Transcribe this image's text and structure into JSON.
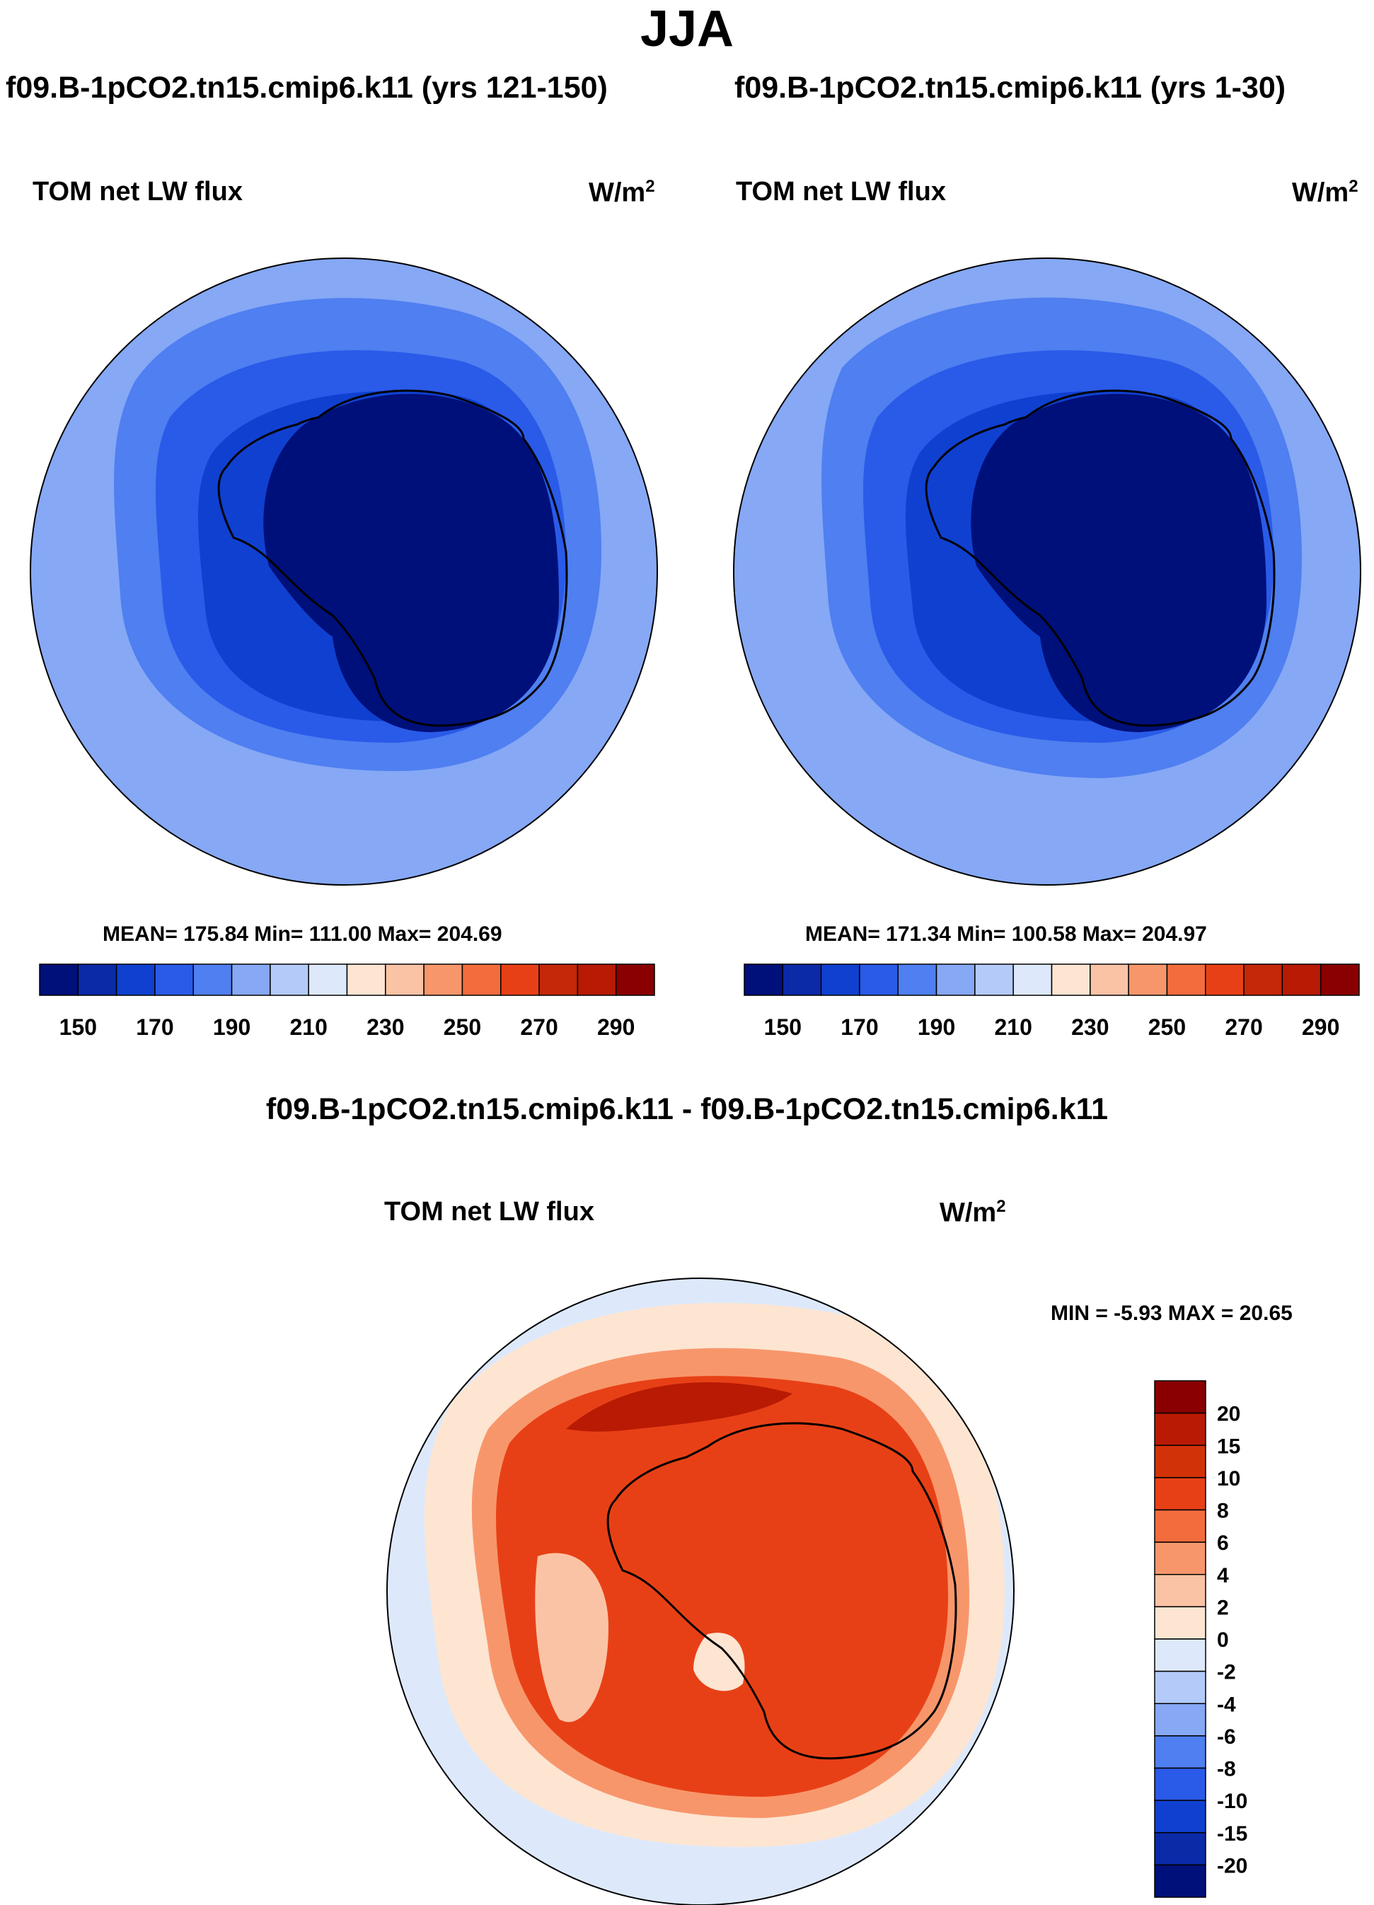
{
  "page": {
    "title": "JJA"
  },
  "panels": [
    {
      "id": "left",
      "case_title": "f09.B-1pCO2.tn15.cmip6.k11 (yrs 121-150)",
      "variable": "TOM net LW flux",
      "units_base": "W/m",
      "units_exp": "2",
      "stats": "MEAN= 175.84  Min= 111.00  Max= 204.69",
      "colorbar_labels": [
        "150",
        "170",
        "190",
        "210",
        "230",
        "250",
        "270",
        "290"
      ]
    },
    {
      "id": "right",
      "case_title": "f09.B-1pCO2.tn15.cmip6.k11 (yrs 1-30)",
      "variable": "TOM net LW flux",
      "units_base": "W/m",
      "units_exp": "2",
      "stats": "MEAN= 171.34  Min= 100.58  Max= 204.97",
      "colorbar_labels": [
        "150",
        "170",
        "190",
        "210",
        "230",
        "250",
        "270",
        "290"
      ]
    }
  ],
  "diff_panel": {
    "case_title": "f09.B-1pCO2.tn15.cmip6.k11 - f09.B-1pCO2.tn15.cmip6.k11",
    "variable": "TOM net LW flux",
    "units_base": "W/m",
    "units_exp": "2",
    "stats": "MIN =  -5.93 MAX =  20.65",
    "colorbar_labels": [
      "20",
      "15",
      "10",
      "8",
      "6",
      "4",
      "2",
      "0",
      "-2",
      "-4",
      "-6",
      "-8",
      "-10",
      "-15",
      "-20"
    ]
  },
  "colors": {
    "abs_scale": [
      "#00107a",
      "#0a2aa8",
      "#1040d0",
      "#2a5ae8",
      "#4f7ff0",
      "#86a8f5",
      "#b4cbf9",
      "#dde9fb",
      "#fde5d2",
      "#fbc3a5",
      "#f8966b",
      "#f36c3d",
      "#e84016",
      "#c42808",
      "#b81a04",
      "#8a0000"
    ],
    "diff_scale": [
      "#8a0000",
      "#b81a04",
      "#d23208",
      "#e84016",
      "#f36c3d",
      "#f8966b",
      "#fbc3a5",
      "#fde5d2",
      "#dde9fb",
      "#b4cbf9",
      "#86a8f5",
      "#4f7ff0",
      "#2a5ae8",
      "#1040d0",
      "#0a2aa8",
      "#00107a"
    ],
    "coastline": "#000000"
  }
}
